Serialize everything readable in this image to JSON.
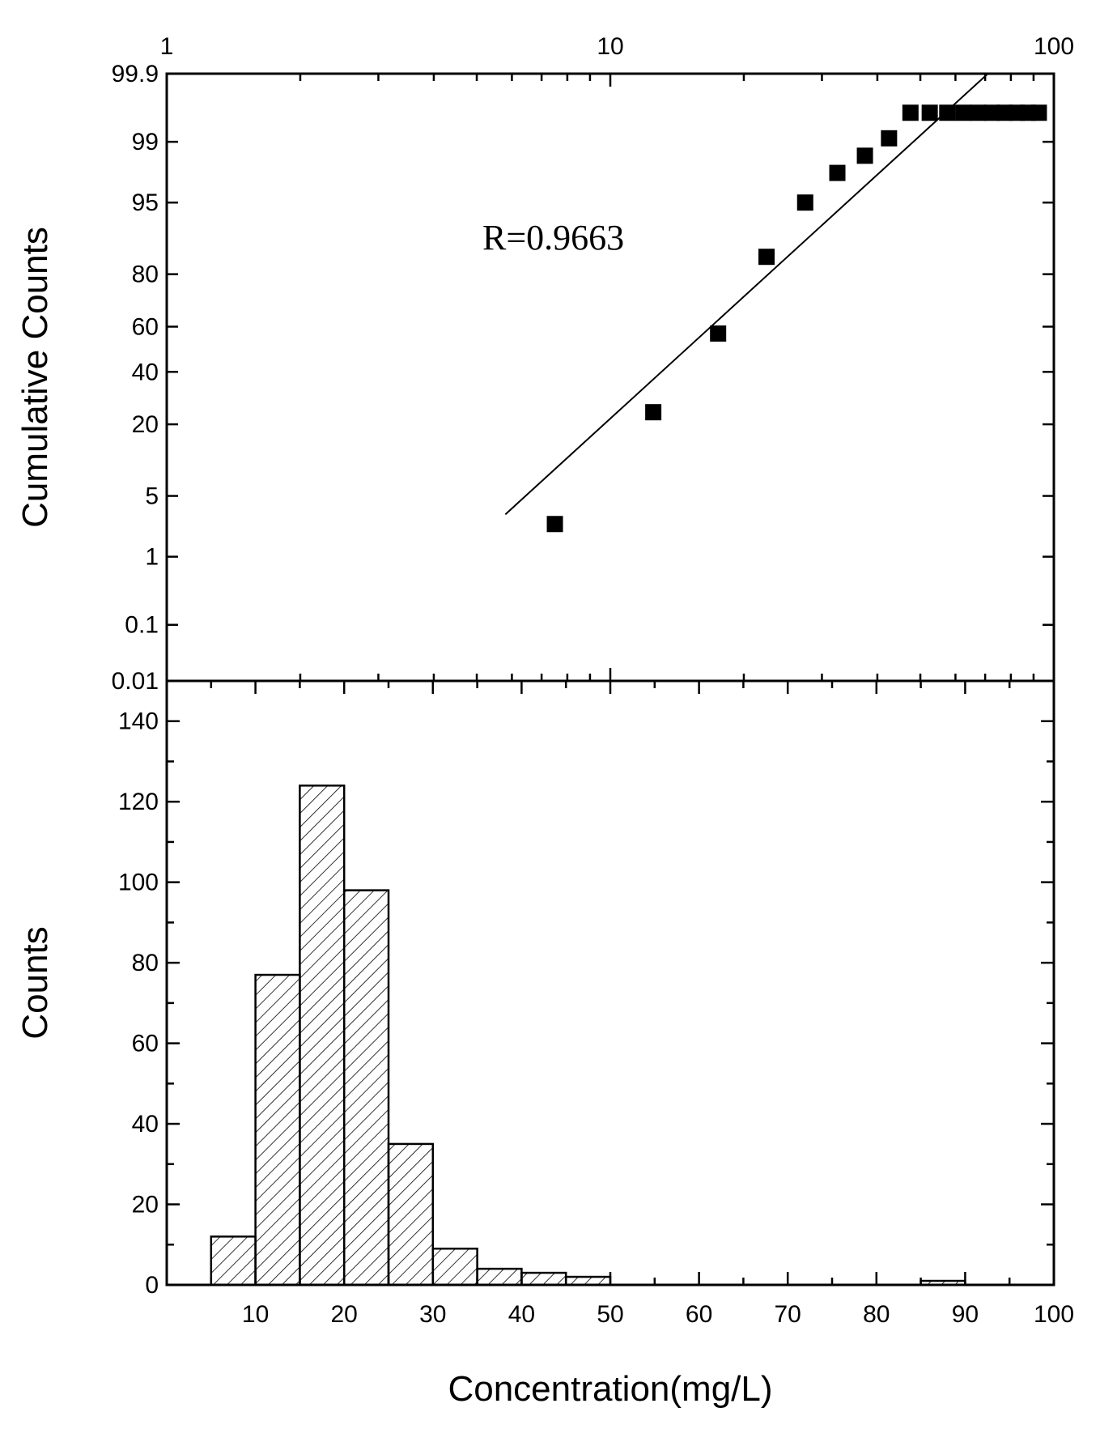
{
  "chart_data": [
    {
      "type": "scatter",
      "subtype": "probability-plot",
      "ylabel": "Cumulative Counts",
      "x_scale": "log",
      "xlim": [
        1,
        100
      ],
      "x_ticks": [
        1,
        10,
        100
      ],
      "x_tick_labels": [
        "1",
        "10",
        "100"
      ],
      "y_scale": "probability",
      "ylim": [
        0.01,
        99.9
      ],
      "y_ticks": [
        0.01,
        0.1,
        1,
        5,
        20,
        40,
        60,
        80,
        95,
        99,
        99.9
      ],
      "y_tick_labels": [
        "0.01",
        "0.1",
        "1",
        "5",
        "20",
        "40",
        "60",
        "80",
        "95",
        "99",
        "99.9"
      ],
      "annotation": "R=0.9663",
      "grid": false,
      "marker": "square",
      "points": [
        {
          "x": 7.5,
          "y": 2.5
        },
        {
          "x": 12.5,
          "y": 24
        },
        {
          "x": 17.5,
          "y": 57
        },
        {
          "x": 22.5,
          "y": 85
        },
        {
          "x": 27.5,
          "y": 95
        },
        {
          "x": 32.5,
          "y": 97.6
        },
        {
          "x": 37.5,
          "y": 98.5
        },
        {
          "x": 42.5,
          "y": 99.1
        },
        {
          "x": 47.5,
          "y": 99.6
        },
        {
          "x": 52.5,
          "y": 99.6
        },
        {
          "x": 57.5,
          "y": 99.6
        },
        {
          "x": 62.5,
          "y": 99.6
        },
        {
          "x": 67.5,
          "y": 99.6
        },
        {
          "x": 72.5,
          "y": 99.6
        },
        {
          "x": 77.5,
          "y": 99.6
        },
        {
          "x": 82.5,
          "y": 99.6
        },
        {
          "x": 87.5,
          "y": 99.6
        },
        {
          "x": 92.5,
          "y": 99.6
        }
      ],
      "fit_line": [
        {
          "x": 5.8,
          "y": 3.2
        },
        {
          "x": 71,
          "y": 99.9
        }
      ]
    },
    {
      "type": "bar",
      "subtype": "histogram",
      "xlabel": "Concentration(mg/L)",
      "ylabel": "Counts",
      "xlim": [
        0,
        100
      ],
      "x_ticks": [
        10,
        20,
        30,
        40,
        50,
        60,
        70,
        80,
        90,
        100
      ],
      "x_tick_labels": [
        "10",
        "20",
        "30",
        "40",
        "50",
        "60",
        "70",
        "80",
        "90",
        "100"
      ],
      "ylim": [
        0,
        150
      ],
      "y_ticks": [
        0,
        20,
        40,
        60,
        80,
        100,
        120,
        140
      ],
      "y_tick_labels": [
        "0",
        "20",
        "40",
        "60",
        "80",
        "100",
        "120",
        "140"
      ],
      "fill": "hatched",
      "grid": false,
      "bins": [
        {
          "from": 5,
          "to": 10,
          "value": 12
        },
        {
          "from": 10,
          "to": 15,
          "value": 77
        },
        {
          "from": 15,
          "to": 20,
          "value": 124
        },
        {
          "from": 20,
          "to": 25,
          "value": 98
        },
        {
          "from": 25,
          "to": 30,
          "value": 35
        },
        {
          "from": 30,
          "to": 35,
          "value": 9
        },
        {
          "from": 35,
          "to": 40,
          "value": 4
        },
        {
          "from": 40,
          "to": 45,
          "value": 3
        },
        {
          "from": 45,
          "to": 50,
          "value": 2
        },
        {
          "from": 85,
          "to": 90,
          "value": 1
        }
      ]
    }
  ]
}
